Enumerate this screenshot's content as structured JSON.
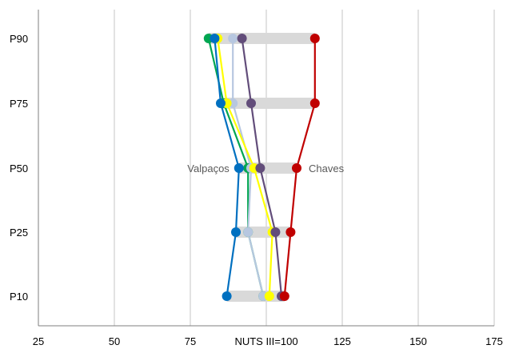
{
  "chart_data": {
    "type": "line",
    "orientation": "horizontal",
    "xlabel": "NUTS III=100",
    "xlim": [
      25,
      175
    ],
    "xticks": [
      25,
      50,
      75,
      100,
      125,
      150,
      175
    ],
    "xtick_labels": [
      "25",
      "50",
      "75",
      "",
      "125",
      "150",
      "175"
    ],
    "categories": [
      "P90",
      "P75",
      "P50",
      "P25",
      "P10"
    ],
    "grid": true,
    "range_bar_color": "#d9d9d9",
    "range_bars": [
      {
        "category": "P90",
        "min": 81,
        "max": 116
      },
      {
        "category": "P75",
        "min": 85,
        "max": 116
      },
      {
        "category": "P50",
        "min": 91,
        "max": 110
      },
      {
        "category": "P25",
        "min": 90,
        "max": 108
      },
      {
        "category": "P10",
        "min": 87,
        "max": 106
      }
    ],
    "series": [
      {
        "color": "#00a651",
        "values": [
          81,
          86,
          94,
          94,
          99
        ]
      },
      {
        "color": "#b7c7e0",
        "values": [
          89,
          89,
          95,
          94,
          99
        ]
      },
      {
        "color": "#ffff00",
        "values": [
          84,
          87,
          96,
          102,
          101
        ]
      },
      {
        "color": "#624d7a",
        "values": [
          92,
          95,
          98,
          103,
          105
        ]
      },
      {
        "color": "#c00000",
        "label": "Chaves",
        "values": [
          116,
          116,
          110,
          108,
          106
        ]
      },
      {
        "color": "#0070c0",
        "label": "Valpaços",
        "values": [
          83,
          85,
          91,
          90,
          87
        ]
      }
    ]
  }
}
